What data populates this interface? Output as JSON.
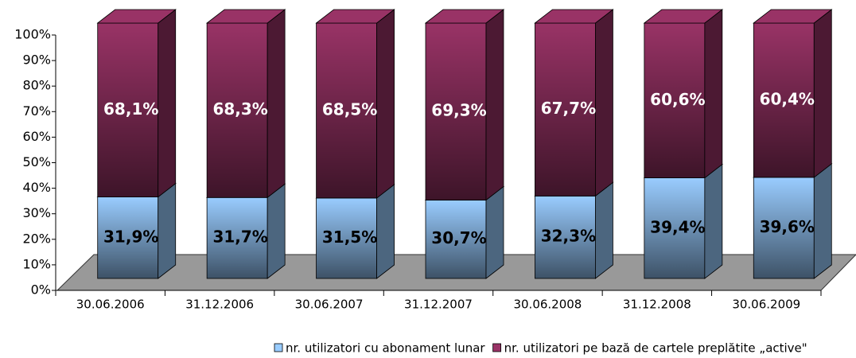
{
  "chart_data": {
    "type": "bar3d_stacked",
    "categories": [
      "30.06.2006",
      "31.12.2006",
      "30.06.2007",
      "31.12.2007",
      "30.06.2008",
      "31.12.2008",
      "30.06.2009"
    ],
    "series": [
      {
        "name": "nr. utilizatori cu abonament lunar",
        "color": "#99ccff",
        "values": [
          31.9,
          31.7,
          31.5,
          30.7,
          32.3,
          39.4,
          39.6
        ],
        "value_labels": [
          "31,9%",
          "31,7%",
          "31,5%",
          "30,7%",
          "32,3%",
          "39,4%",
          "39,6%"
        ]
      },
      {
        "name": "nr. utilizatori pe bază de cartele preplătite „active\"",
        "color": "#993366",
        "values": [
          68.1,
          68.3,
          68.5,
          69.3,
          67.7,
          60.6,
          60.4
        ],
        "value_labels": [
          "68,1%",
          "68,3%",
          "68,5%",
          "69,3%",
          "67,7%",
          "60,6%",
          "60,4%"
        ]
      }
    ],
    "ylim": [
      0,
      100
    ],
    "yticks": [
      {
        "value": 0,
        "label": "0%"
      },
      {
        "value": 10,
        "label": "10%"
      },
      {
        "value": 20,
        "label": "20%"
      },
      {
        "value": 30,
        "label": "30%"
      },
      {
        "value": 40,
        "label": "40%"
      },
      {
        "value": 50,
        "label": "50%"
      },
      {
        "value": 60,
        "label": "60%"
      },
      {
        "value": 70,
        "label": "70%"
      },
      {
        "value": 80,
        "label": "80%"
      },
      {
        "value": 90,
        "label": "90%"
      },
      {
        "value": 100,
        "label": "100%"
      }
    ],
    "legend": "bottom"
  }
}
